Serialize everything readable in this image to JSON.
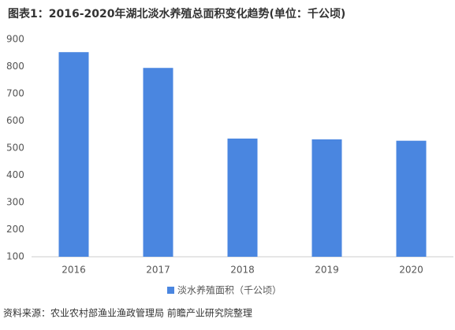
{
  "chart_data": {
    "type": "bar",
    "title": "图表1：2016-2020年湖北淡水养殖总面积变化趋势(单位：千公顷)",
    "categories": [
      "2016",
      "2017",
      "2018",
      "2019",
      "2020"
    ],
    "series": [
      {
        "name": "淡水养殖面积（千公顷）",
        "color": "#4a86e0",
        "values": [
          853,
          795,
          535,
          532,
          527
        ]
      }
    ],
    "ylim": [
      100,
      900
    ],
    "yticks": [
      100,
      200,
      300,
      400,
      500,
      600,
      700,
      800,
      900
    ],
    "grid": false,
    "legend": "bottom"
  },
  "source": "资料来源：农业农村部渔业渔政管理局 前瞻产业研究院整理"
}
